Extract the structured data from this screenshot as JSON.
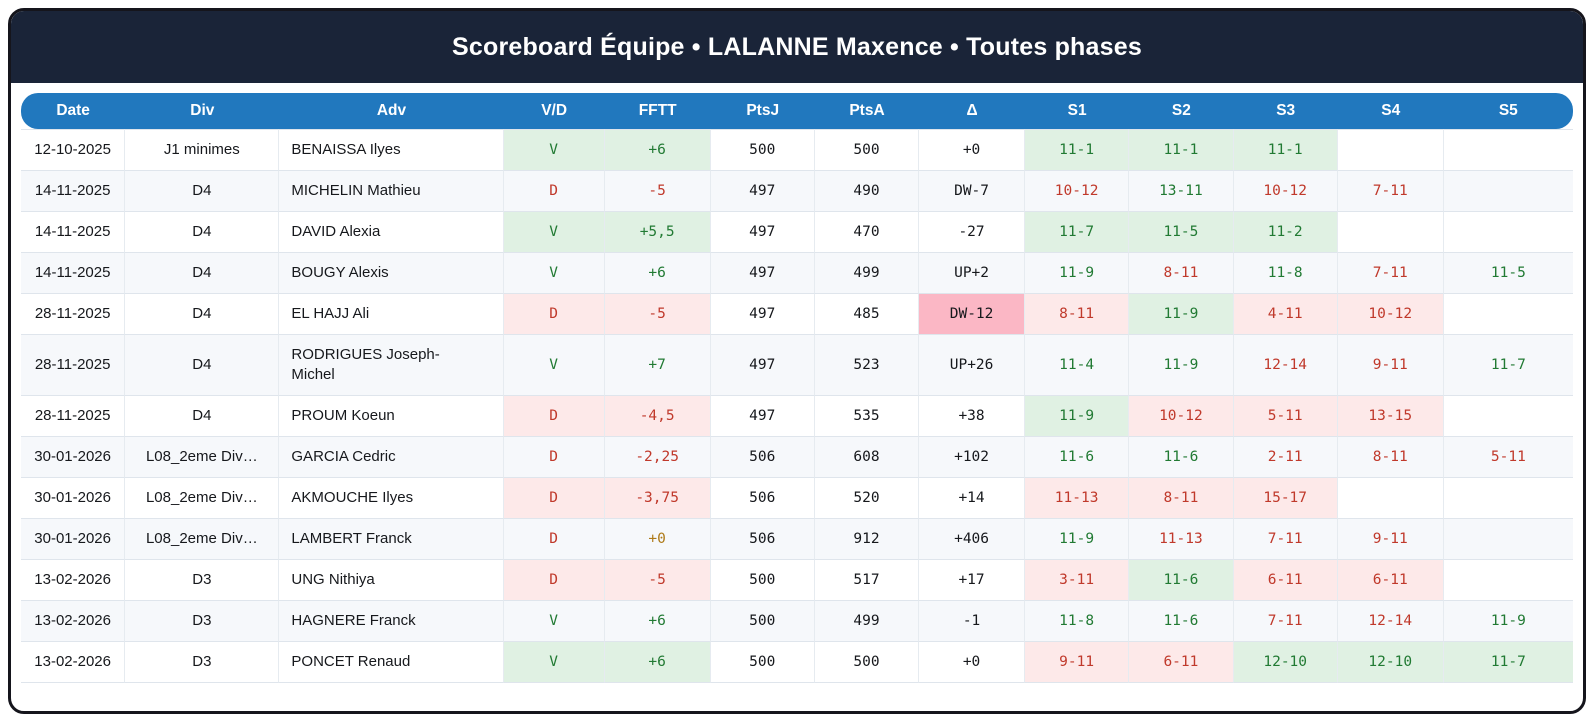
{
  "title": "Scoreboard Équipe • LALANNE Maxence • Toutes phases",
  "colors": {
    "titlebar_navy": "#1a2438",
    "header_blue": "#2178be",
    "win_bg": "#e0f1e3",
    "win_text": "#217a33",
    "loss_bg": "#fde9e9",
    "loss_text": "#c0392b",
    "delta_up_bg": "#b6a2dd",
    "delta_down_bg": "#fbb7c5",
    "fftt_zero_bg": "#fdf3da",
    "fftt_zero_text": "#ae7a18",
    "row_stripe": "#f6f8fb"
  },
  "table": {
    "columns": [
      {
        "key": "date",
        "label": "Date"
      },
      {
        "key": "div",
        "label": "Div"
      },
      {
        "key": "adv",
        "label": "Adv"
      },
      {
        "key": "vd",
        "label": "V/D"
      },
      {
        "key": "fftt",
        "label": "FFTT"
      },
      {
        "key": "ptsj",
        "label": "PtsJ"
      },
      {
        "key": "ptsa",
        "label": "PtsA"
      },
      {
        "key": "delta",
        "label": "Δ"
      },
      {
        "key": "s1",
        "label": "S1"
      },
      {
        "key": "s2",
        "label": "S2"
      },
      {
        "key": "s3",
        "label": "S3"
      },
      {
        "key": "s4",
        "label": "S4"
      },
      {
        "key": "s5",
        "label": "S5"
      }
    ],
    "rows": [
      {
        "date": "12-10-2025",
        "div": "J1 minimes",
        "adv": "BENAISSA Ilyes",
        "vd": "V",
        "fftt": "+6",
        "ptsj": "500",
        "ptsa": "500",
        "delta": "+0",
        "sets": [
          "11-1",
          "11-1",
          "11-1",
          "",
          ""
        ]
      },
      {
        "date": "14-11-2025",
        "div": "D4",
        "adv": "MICHELIN Mathieu",
        "vd": "D",
        "fftt": "-5",
        "ptsj": "497",
        "ptsa": "490",
        "delta": "DW-7",
        "sets": [
          "10-12",
          "13-11",
          "10-12",
          "7-11",
          ""
        ]
      },
      {
        "date": "14-11-2025",
        "div": "D4",
        "adv": "DAVID Alexia",
        "vd": "V",
        "fftt": "+5,5",
        "ptsj": "497",
        "ptsa": "470",
        "delta": "-27",
        "sets": [
          "11-7",
          "11-5",
          "11-2",
          "",
          ""
        ]
      },
      {
        "date": "14-11-2025",
        "div": "D4",
        "adv": "BOUGY Alexis",
        "vd": "V",
        "fftt": "+6",
        "ptsj": "497",
        "ptsa": "499",
        "delta": "UP+2",
        "sets": [
          "11-9",
          "8-11",
          "11-8",
          "7-11",
          "11-5"
        ]
      },
      {
        "date": "28-11-2025",
        "div": "D4",
        "adv": "EL HAJJ Ali",
        "vd": "D",
        "fftt": "-5",
        "ptsj": "497",
        "ptsa": "485",
        "delta": "DW-12",
        "sets": [
          "8-11",
          "11-9",
          "4-11",
          "10-12",
          ""
        ]
      },
      {
        "date": "28-11-2025",
        "div": "D4",
        "adv": "RODRIGUES Joseph-Michel",
        "vd": "V",
        "fftt": "+7",
        "ptsj": "497",
        "ptsa": "523",
        "delta": "UP+26",
        "sets": [
          "11-4",
          "11-9",
          "12-14",
          "9-11",
          "11-7"
        ]
      },
      {
        "date": "28-11-2025",
        "div": "D4",
        "adv": "PROUM Koeun",
        "vd": "D",
        "fftt": "-4,5",
        "ptsj": "497",
        "ptsa": "535",
        "delta": "+38",
        "sets": [
          "11-9",
          "10-12",
          "5-11",
          "13-15",
          ""
        ]
      },
      {
        "date": "30-01-2026",
        "div": "L08_2eme Div…",
        "adv": "GARCIA Cedric",
        "vd": "D",
        "fftt": "-2,25",
        "ptsj": "506",
        "ptsa": "608",
        "delta": "+102",
        "sets": [
          "11-6",
          "11-6",
          "2-11",
          "8-11",
          "5-11"
        ]
      },
      {
        "date": "30-01-2026",
        "div": "L08_2eme Div…",
        "adv": "AKMOUCHE Ilyes",
        "vd": "D",
        "fftt": "-3,75",
        "ptsj": "506",
        "ptsa": "520",
        "delta": "+14",
        "sets": [
          "11-13",
          "8-11",
          "15-17",
          "",
          ""
        ]
      },
      {
        "date": "30-01-2026",
        "div": "L08_2eme Div…",
        "adv": "LAMBERT Franck",
        "vd": "D",
        "fftt": "+0",
        "ptsj": "506",
        "ptsa": "912",
        "delta": "+406",
        "sets": [
          "11-9",
          "11-13",
          "7-11",
          "9-11",
          ""
        ]
      },
      {
        "date": "13-02-2026",
        "div": "D3",
        "adv": "UNG Nithiya",
        "vd": "D",
        "fftt": "-5",
        "ptsj": "500",
        "ptsa": "517",
        "delta": "+17",
        "sets": [
          "3-11",
          "11-6",
          "6-11",
          "6-11",
          ""
        ]
      },
      {
        "date": "13-02-2026",
        "div": "D3",
        "adv": "HAGNERE Franck",
        "vd": "V",
        "fftt": "+6",
        "ptsj": "500",
        "ptsa": "499",
        "delta": "-1",
        "sets": [
          "11-8",
          "11-6",
          "7-11",
          "12-14",
          "11-9"
        ]
      },
      {
        "date": "13-02-2026",
        "div": "D3",
        "adv": "PONCET Renaud",
        "vd": "V",
        "fftt": "+6",
        "ptsj": "500",
        "ptsa": "500",
        "delta": "+0",
        "sets": [
          "9-11",
          "6-11",
          "12-10",
          "12-10",
          "11-7"
        ]
      }
    ]
  }
}
